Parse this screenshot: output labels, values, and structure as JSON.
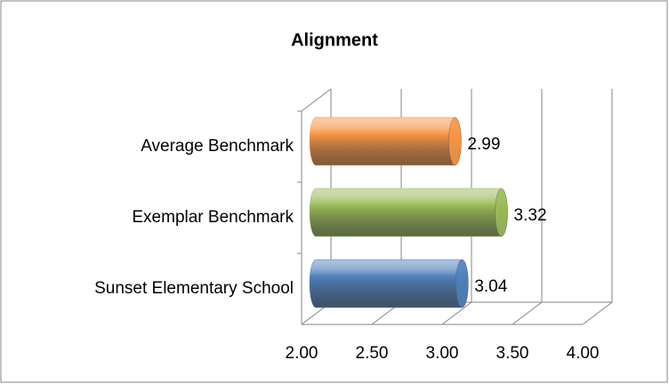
{
  "chart_data": {
    "type": "bar",
    "orientation": "horizontal",
    "title": "Alignment",
    "categories": [
      "Average Benchmark",
      "Exemplar Benchmark",
      "Sunset Elementary School"
    ],
    "values": [
      2.99,
      3.32,
      3.04
    ],
    "colors": [
      "#f79646",
      "#9bbb59",
      "#4f81bd"
    ],
    "xlim": [
      2,
      4
    ],
    "xticks": [
      {
        "value": 2,
        "label": "2.00"
      },
      {
        "value": 2.5,
        "label": "2.50"
      },
      {
        "value": 3,
        "label": "3.00"
      },
      {
        "value": 3.5,
        "label": "3.50"
      },
      {
        "value": 4,
        "label": "4.00"
      }
    ],
    "grid": true
  }
}
